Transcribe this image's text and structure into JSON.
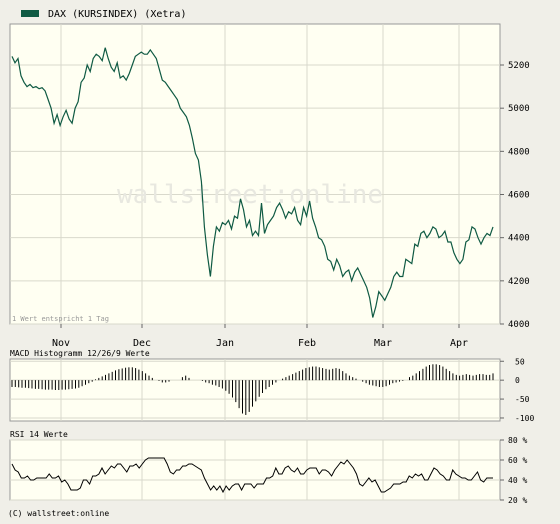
{
  "chart_data": [
    {
      "type": "line",
      "title": "DAX (KURSINDEX) (Xetra)",
      "legend": "top-left",
      "series_color": "#0f5a43",
      "note": "1 Wert entspricht 1 Tag",
      "watermark": "wallstreet:online",
      "x_tick_labels": [
        "Nov",
        "Dec",
        "Jan",
        "Feb",
        "Mar",
        "Apr"
      ],
      "y_ticks": [
        4000,
        4200,
        4400,
        4600,
        4800,
        5000,
        5200
      ],
      "ylim": [
        4000,
        5390
      ],
      "grid": true,
      "values": [
        5240,
        5210,
        5230,
        5150,
        5120,
        5100,
        5110,
        5095,
        5100,
        5090,
        5095,
        5080,
        5040,
        5000,
        4930,
        4970,
        4920,
        4960,
        4990,
        4950,
        4930,
        5000,
        5030,
        5120,
        5140,
        5200,
        5170,
        5230,
        5250,
        5240,
        5220,
        5280,
        5230,
        5190,
        5170,
        5210,
        5140,
        5150,
        5130,
        5160,
        5200,
        5240,
        5250,
        5260,
        5250,
        5250,
        5270,
        5250,
        5230,
        5180,
        5130,
        5120,
        5100,
        5080,
        5060,
        5040,
        5000,
        4980,
        4960,
        4920,
        4860,
        4790,
        4760,
        4660,
        4450,
        4320,
        4220,
        4360,
        4450,
        4430,
        4470,
        4460,
        4480,
        4440,
        4500,
        4490,
        4580,
        4530,
        4450,
        4480,
        4410,
        4430,
        4410,
        4560,
        4420,
        4460,
        4480,
        4500,
        4540,
        4560,
        4530,
        4490,
        4520,
        4510,
        4540,
        4480,
        4460,
        4540,
        4500,
        4570,
        4490,
        4450,
        4400,
        4390,
        4360,
        4300,
        4290,
        4250,
        4300,
        4270,
        4220,
        4240,
        4250,
        4200,
        4240,
        4260,
        4230,
        4200,
        4170,
        4120,
        4030,
        4080,
        4150,
        4130,
        4110,
        4140,
        4170,
        4220,
        4240,
        4220,
        4220,
        4300,
        4290,
        4280,
        4370,
        4360,
        4420,
        4430,
        4400,
        4420,
        4450,
        4440,
        4400,
        4410,
        4430,
        4380,
        4380,
        4330,
        4300,
        4280,
        4300,
        4380,
        4390,
        4450,
        4440,
        4400,
        4370,
        4400,
        4420,
        4410,
        4450
      ]
    },
    {
      "type": "bar",
      "title": "MACD Histogramm 12/26/9 Werte",
      "y_ticks": [
        50,
        0,
        -50,
        -100
      ],
      "ylim": [
        -108,
        56
      ],
      "grid": true,
      "values": [
        -18,
        -18,
        -19,
        -20,
        -20,
        -21,
        -22,
        -23,
        -23,
        -24,
        -25,
        -25,
        -25,
        -26,
        -26,
        -25,
        -25,
        -24,
        -23,
        -22,
        -20,
        -16,
        -12,
        -8,
        -4,
        2,
        6,
        10,
        14,
        18,
        22,
        26,
        29,
        31,
        33,
        34,
        34,
        32,
        28,
        24,
        18,
        12,
        6,
        0,
        -2,
        -6,
        -6,
        -4,
        0,
        0,
        0,
        8,
        12,
        6,
        0,
        0,
        0,
        -2,
        -6,
        -8,
        -12,
        -14,
        -18,
        -22,
        -28,
        -36,
        -46,
        -58,
        -74,
        -88,
        -92,
        -84,
        -70,
        -56,
        -44,
        -34,
        -24,
        -18,
        -12,
        -6,
        0,
        4,
        8,
        12,
        16,
        20,
        24,
        28,
        32,
        34,
        36,
        36,
        34,
        32,
        30,
        28,
        30,
        32,
        30,
        24,
        18,
        12,
        8,
        4,
        0,
        -4,
        -8,
        -12,
        -14,
        -16,
        -18,
        -18,
        -16,
        -12,
        -8,
        -6,
        -4,
        -2,
        0,
        8,
        12,
        18,
        24,
        30,
        36,
        40,
        42,
        42,
        40,
        36,
        30,
        24,
        18,
        14,
        12,
        14,
        16,
        14,
        12,
        14,
        16,
        16,
        14,
        14,
        18
      ]
    },
    {
      "type": "line",
      "title": "RSI 14 Werte",
      "y_ticks": [
        "80 %",
        "60 %",
        "40 %",
        "20 %"
      ],
      "ylim": [
        20,
        80
      ],
      "grid": true,
      "values": [
        56,
        50,
        48,
        42,
        42,
        44,
        40,
        40,
        42,
        42,
        42,
        42,
        46,
        42,
        42,
        44,
        38,
        40,
        36,
        30,
        30,
        30,
        32,
        40,
        40,
        36,
        44,
        44,
        46,
        52,
        46,
        50,
        54,
        52,
        56,
        56,
        52,
        48,
        54,
        54,
        56,
        52,
        56,
        60,
        62,
        62,
        62,
        62,
        62,
        62,
        56,
        48,
        46,
        50,
        50,
        54,
        54,
        56,
        56,
        54,
        52,
        50,
        42,
        36,
        30,
        34,
        30,
        34,
        28,
        34,
        30,
        34,
        36,
        36,
        30,
        36,
        36,
        36,
        32,
        36,
        36,
        36,
        42,
        42,
        44,
        52,
        46,
        46,
        52,
        54,
        50,
        48,
        52,
        46,
        46,
        50,
        52,
        52,
        52,
        46,
        50,
        50,
        48,
        44,
        50,
        54,
        58,
        56,
        60,
        56,
        52,
        46,
        36,
        34,
        38,
        42,
        38,
        40,
        34,
        28,
        28,
        30,
        32,
        36,
        36,
        36,
        38,
        38,
        44,
        42,
        46,
        44,
        46,
        40,
        40,
        46,
        52,
        50,
        46,
        44,
        40,
        40,
        50,
        46,
        44,
        42,
        42,
        40,
        40,
        44,
        48,
        40,
        38,
        42,
        42,
        42
      ]
    }
  ],
  "footer": "(C) wallstreet:online"
}
